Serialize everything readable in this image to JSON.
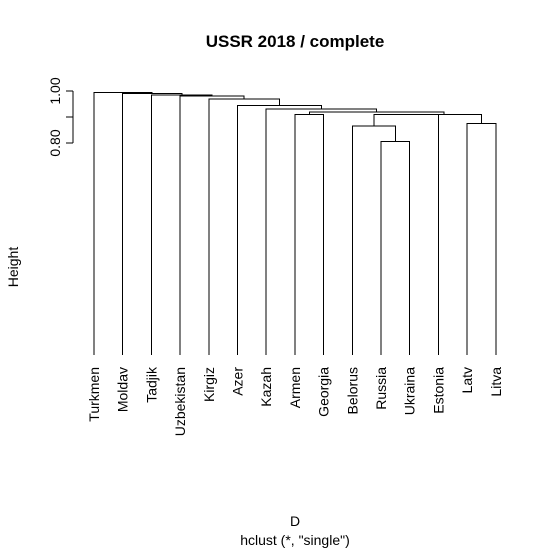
{
  "chart_data": {
    "type": "dendrogram",
    "title": "USSR 2018 / complete",
    "ylabel": "Height",
    "xlabel": "D",
    "sublabel": "hclust (*, \"single\")",
    "y_ticks": [
      "0.80",
      "",
      "1.00"
    ],
    "y_tick_values": [
      0.8,
      0.9,
      1.0
    ],
    "leaves": [
      "Turkmen",
      "Moldav",
      "Tadjik",
      "Uzbekistan",
      "Kirgiz",
      "Azer",
      "Kazah",
      "Armen",
      "Georgia",
      "Belorus",
      "Russia",
      "Ukraina",
      "Estonia",
      "Latv",
      "Litva"
    ],
    "merges": [
      {
        "left": "Russia",
        "right": "Ukraina",
        "height": 0.805
      },
      {
        "left": "Belorus",
        "right": "m1",
        "height": 0.865
      },
      {
        "left": "Latv",
        "right": "Litva",
        "height": 0.875
      },
      {
        "left": "Armen",
        "right": "Georgia",
        "height": 0.91
      },
      {
        "left": "m2",
        "right": "Estonia",
        "height": 0.91
      },
      {
        "left": "m5",
        "right": "m3",
        "height": 0.91
      },
      {
        "left": "m4",
        "right": "m6",
        "height": 0.92
      },
      {
        "left": "Kazah",
        "right": "m7",
        "height": 0.93
      },
      {
        "left": "Azer",
        "right": "m8",
        "height": 0.945
      },
      {
        "left": "Kirgiz",
        "right": "m9",
        "height": 0.97
      },
      {
        "left": "Uzbekistan",
        "right": "m10",
        "height": 0.98
      },
      {
        "left": "Tadjik",
        "right": "m11",
        "height": 0.985
      },
      {
        "left": "Moldav",
        "right": "m12",
        "height": 0.99
      },
      {
        "left": "Turkmen",
        "right": "m13",
        "height": 0.995
      }
    ]
  }
}
